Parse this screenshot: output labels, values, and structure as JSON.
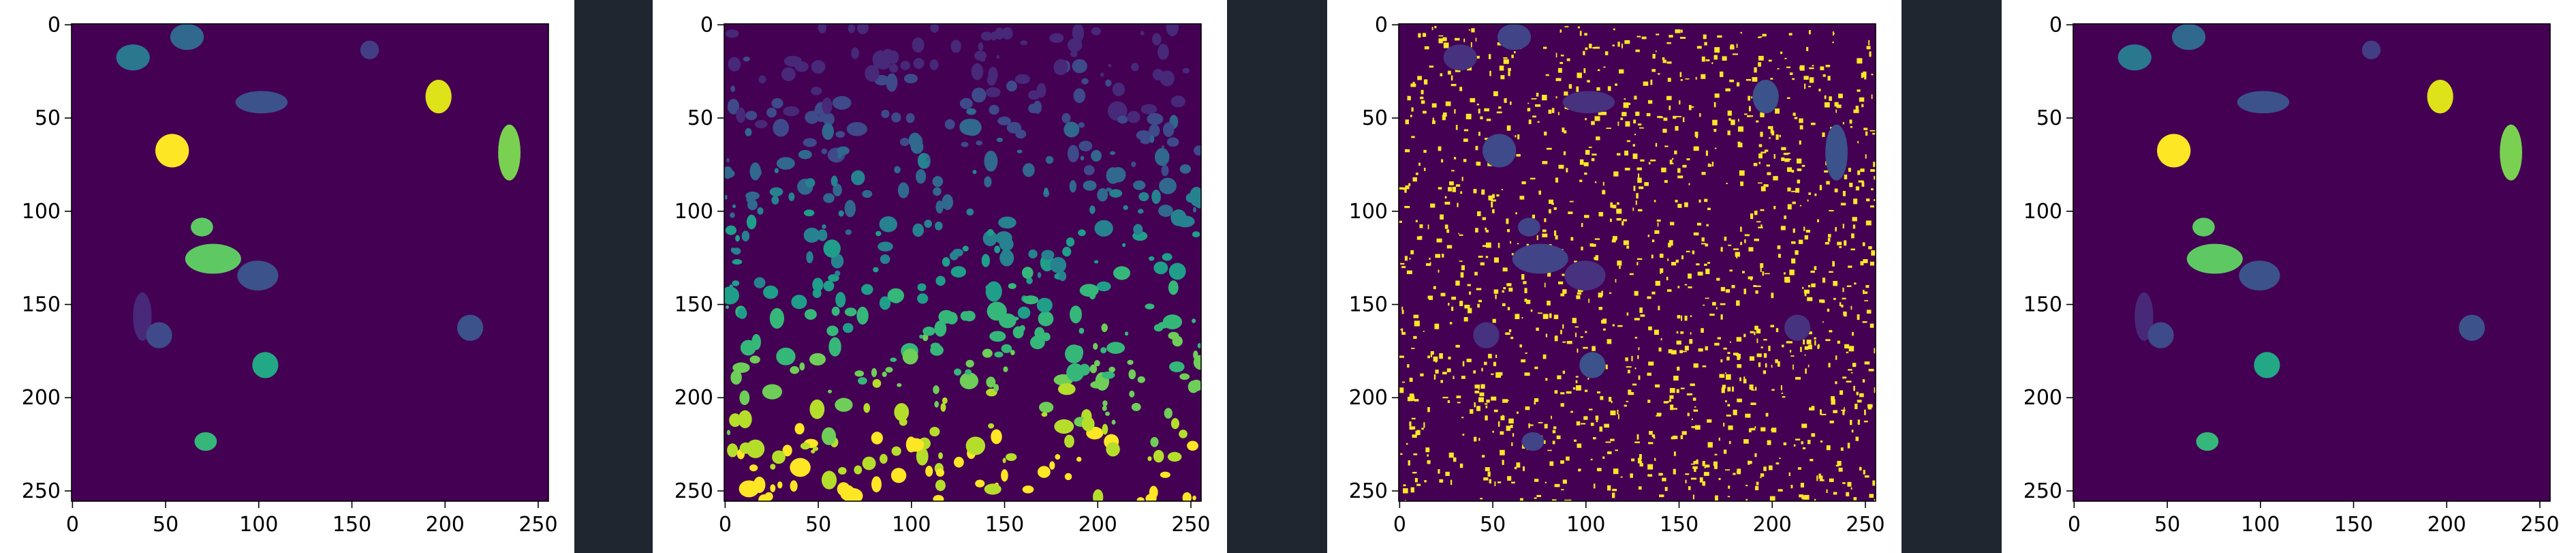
{
  "panels": [
    {
      "axes": {
        "x_ticks": [
          "0",
          "50",
          "100",
          "150",
          "200",
          "250"
        ],
        "y_ticks": [
          "0",
          "50",
          "100",
          "150",
          "200",
          "250"
        ]
      },
      "background_color": "#440154",
      "blobs": [
        {
          "cx": 62,
          "cy": 7,
          "rx": 9,
          "ry": 7,
          "c": "#31688e"
        },
        {
          "cx": 33,
          "cy": 18,
          "rx": 9,
          "ry": 7,
          "c": "#2a788e"
        },
        {
          "cx": 160,
          "cy": 14,
          "rx": 5,
          "ry": 5,
          "c": "#433d84"
        },
        {
          "cx": 102,
          "cy": 42,
          "rx": 14,
          "ry": 6,
          "c": "#3b528b"
        },
        {
          "cx": 197,
          "cy": 39,
          "rx": 7,
          "ry": 9,
          "c": "#dde318"
        },
        {
          "cx": 235,
          "cy": 69,
          "rx": 6,
          "ry": 15,
          "c": "#7ad151"
        },
        {
          "cx": 54,
          "cy": 68,
          "rx": 9,
          "ry": 9,
          "c": "#fde725"
        },
        {
          "cx": 70,
          "cy": 109,
          "rx": 6,
          "ry": 5,
          "c": "#5ec962"
        },
        {
          "cx": 76,
          "cy": 126,
          "rx": 15,
          "ry": 8,
          "c": "#5ec962"
        },
        {
          "cx": 100,
          "cy": 135,
          "rx": 11,
          "ry": 8,
          "c": "#3b528b"
        },
        {
          "cx": 38,
          "cy": 157,
          "rx": 5,
          "ry": 13,
          "c": "#482878"
        },
        {
          "cx": 47,
          "cy": 167,
          "rx": 7,
          "ry": 7,
          "c": "#3e4a89"
        },
        {
          "cx": 214,
          "cy": 163,
          "rx": 7,
          "ry": 7,
          "c": "#3b528b"
        },
        {
          "cx": 104,
          "cy": 183,
          "rx": 7,
          "ry": 7,
          "c": "#22a884"
        },
        {
          "cx": 72,
          "cy": 224,
          "rx": 6,
          "ry": 5,
          "c": "#35b779"
        }
      ]
    },
    {
      "axes": {
        "x_ticks": [
          "0",
          "50",
          "100",
          "150",
          "200",
          "250"
        ],
        "y_ticks": [
          "0",
          "50",
          "100",
          "150",
          "200",
          "250"
        ]
      },
      "background_color": "#440154",
      "scatter_blobs": true
    },
    {
      "axes": {
        "x_ticks": [
          "0",
          "50",
          "100",
          "150",
          "200",
          "250"
        ],
        "y_ticks": [
          "0",
          "50",
          "100",
          "150",
          "200",
          "250"
        ]
      },
      "background_color": "#440154",
      "overlay": true,
      "blobs": [
        {
          "cx": 62,
          "cy": 7,
          "rx": 9,
          "ry": 7,
          "c": "#414487"
        },
        {
          "cx": 33,
          "cy": 18,
          "rx": 9,
          "ry": 7,
          "c": "#46327e"
        },
        {
          "cx": 102,
          "cy": 42,
          "rx": 14,
          "ry": 6,
          "c": "#46327e"
        },
        {
          "cx": 197,
          "cy": 39,
          "rx": 7,
          "ry": 9,
          "c": "#3b528b"
        },
        {
          "cx": 235,
          "cy": 69,
          "rx": 6,
          "ry": 15,
          "c": "#3b528b"
        },
        {
          "cx": 54,
          "cy": 68,
          "rx": 9,
          "ry": 9,
          "c": "#3e4a89"
        },
        {
          "cx": 70,
          "cy": 109,
          "rx": 6,
          "ry": 5,
          "c": "#414487"
        },
        {
          "cx": 76,
          "cy": 126,
          "rx": 15,
          "ry": 8,
          "c": "#414487"
        },
        {
          "cx": 100,
          "cy": 135,
          "rx": 11,
          "ry": 8,
          "c": "#46327e"
        },
        {
          "cx": 47,
          "cy": 167,
          "rx": 7,
          "ry": 7,
          "c": "#46327e"
        },
        {
          "cx": 214,
          "cy": 163,
          "rx": 7,
          "ry": 7,
          "c": "#46327e"
        },
        {
          "cx": 104,
          "cy": 183,
          "rx": 7,
          "ry": 7,
          "c": "#3b528b"
        },
        {
          "cx": 72,
          "cy": 224,
          "rx": 6,
          "ry": 5,
          "c": "#414487"
        }
      ]
    },
    {
      "axes": {
        "x_ticks": [
          "0",
          "50",
          "100",
          "150",
          "200",
          "250"
        ],
        "y_ticks": [
          "0",
          "50",
          "100",
          "150",
          "200",
          "250"
        ]
      },
      "background_color": "#440154",
      "blobs": [
        {
          "cx": 62,
          "cy": 7,
          "rx": 9,
          "ry": 7,
          "c": "#31688e"
        },
        {
          "cx": 33,
          "cy": 18,
          "rx": 9,
          "ry": 7,
          "c": "#2a788e"
        },
        {
          "cx": 160,
          "cy": 14,
          "rx": 5,
          "ry": 5,
          "c": "#433d84"
        },
        {
          "cx": 102,
          "cy": 42,
          "rx": 14,
          "ry": 6,
          "c": "#3b528b"
        },
        {
          "cx": 197,
          "cy": 39,
          "rx": 7,
          "ry": 9,
          "c": "#dde318"
        },
        {
          "cx": 235,
          "cy": 69,
          "rx": 6,
          "ry": 15,
          "c": "#7ad151"
        },
        {
          "cx": 54,
          "cy": 68,
          "rx": 9,
          "ry": 9,
          "c": "#fde725"
        },
        {
          "cx": 70,
          "cy": 109,
          "rx": 6,
          "ry": 5,
          "c": "#5ec962"
        },
        {
          "cx": 76,
          "cy": 126,
          "rx": 15,
          "ry": 8,
          "c": "#5ec962"
        },
        {
          "cx": 100,
          "cy": 135,
          "rx": 11,
          "ry": 8,
          "c": "#3b528b"
        },
        {
          "cx": 38,
          "cy": 157,
          "rx": 5,
          "ry": 13,
          "c": "#482878"
        },
        {
          "cx": 47,
          "cy": 167,
          "rx": 7,
          "ry": 7,
          "c": "#3e4a89"
        },
        {
          "cx": 214,
          "cy": 163,
          "rx": 7,
          "ry": 7,
          "c": "#3b528b"
        },
        {
          "cx": 104,
          "cy": 183,
          "rx": 7,
          "ry": 7,
          "c": "#22a884"
        },
        {
          "cx": 72,
          "cy": 224,
          "rx": 6,
          "ry": 5,
          "c": "#35b779"
        }
      ]
    }
  ]
}
